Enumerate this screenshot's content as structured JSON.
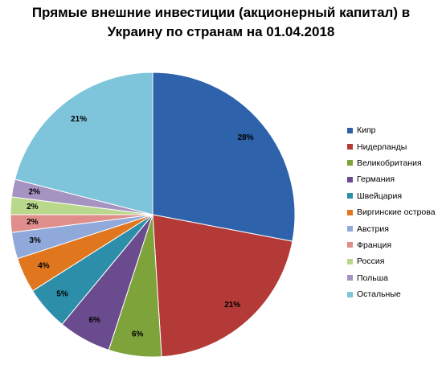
{
  "chart_data": {
    "type": "pie",
    "title_lines": [
      "Прямые внешние инвестиции (акционерный капитал) в",
      "Украину по странам на 01.04.2018"
    ],
    "slices": [
      {
        "name": "Кипр",
        "value": 28,
        "label": "28%",
        "color": "#2E62AB"
      },
      {
        "name": "Нидерланды",
        "value": 21,
        "label": "21%",
        "color": "#B33A37"
      },
      {
        "name": "Великобритания",
        "value": 6,
        "label": "6%",
        "color": "#7FA33B"
      },
      {
        "name": "Германия",
        "value": 6,
        "label": "6%",
        "color": "#6A4B8E"
      },
      {
        "name": "Швейцария",
        "value": 5,
        "label": "5%",
        "color": "#2C8EA8"
      },
      {
        "name": "Виргинские острова",
        "value": 4,
        "label": "4%",
        "color": "#E0771F"
      },
      {
        "name": "Австрия",
        "value": 3,
        "label": "3%",
        "color": "#8FA9DA"
      },
      {
        "name": "Франция",
        "value": 2,
        "label": "2%",
        "color": "#E08E8C"
      },
      {
        "name": "Россия",
        "value": 2,
        "label": "2%",
        "color": "#B9D88B"
      },
      {
        "name": "Польша",
        "value": 2,
        "label": "2%",
        "color": "#A593C1"
      },
      {
        "name": "Остальные",
        "value": 21,
        "label": "21%",
        "color": "#7EC4DB"
      }
    ],
    "legend_position": "right",
    "start_angle": "top",
    "direction": "clockwise"
  }
}
